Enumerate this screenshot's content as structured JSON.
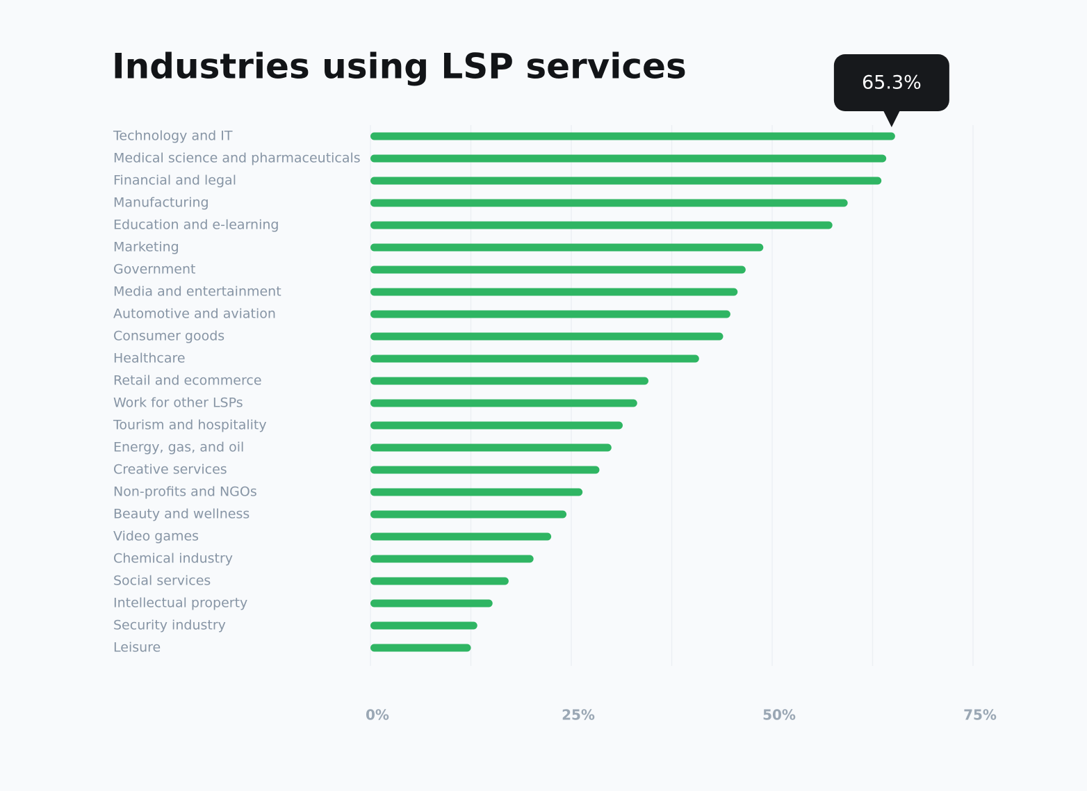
{
  "chart_data": {
    "type": "bar",
    "orientation": "horizontal",
    "title": "Industries using LSP services",
    "categories": [
      "Technology and IT",
      "Medical science and pharmaceuticals",
      "Financial and legal",
      "Manufacturing",
      "Education and e-learning",
      "Marketing",
      "Government",
      "Media and entertainment",
      "Automotive and aviation",
      "Consumer goods",
      "Healthcare",
      "Retail and ecommerce",
      "Work for other LSPs",
      "Tourism and hospitality",
      "Energy, gas, and oil",
      "Creative services",
      "Non-profits and NGOs",
      "Beauty and wellness",
      "Video games",
      "Chemical industry",
      "Social services",
      "Intellectual property",
      "Security industry",
      "Leisure"
    ],
    "values": [
      65.3,
      64.2,
      63.6,
      59.4,
      57.5,
      48.9,
      46.7,
      45.7,
      44.8,
      43.9,
      40.9,
      34.6,
      33.2,
      31.4,
      30.0,
      28.5,
      26.4,
      24.4,
      22.5,
      20.3,
      17.2,
      15.2,
      13.3,
      12.5
    ],
    "value_labels": [
      "65.3%",
      null,
      null,
      null,
      null,
      null,
      null,
      null,
      null,
      null,
      null,
      null,
      null,
      null,
      null,
      null,
      null,
      null,
      null,
      null,
      null,
      null,
      null,
      null
    ],
    "color": "#2fb563",
    "xlim": [
      0,
      75
    ],
    "xticks": [
      {
        "value": 0,
        "label": "0%"
      },
      {
        "value": 25,
        "label": "25%"
      },
      {
        "value": 50,
        "label": "50%"
      },
      {
        "value": 75,
        "label": "75%"
      }
    ],
    "x_minor_ticks": [
      12.5,
      37.5,
      62.5
    ],
    "grid": true
  }
}
